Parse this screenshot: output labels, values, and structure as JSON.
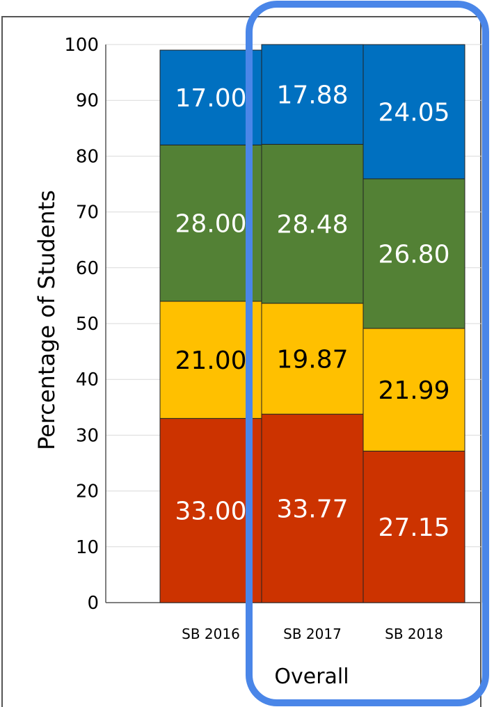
{
  "chart_data": {
    "type": "bar",
    "stacked": true,
    "categories": [
      "SB 2016",
      "SB 2017",
      "SB 2018"
    ],
    "series": [
      {
        "values": [
          33.0,
          33.77,
          27.15
        ],
        "labels": [
          "33.00",
          "33.77",
          "27.15"
        ],
        "color": "#CC3300",
        "label_color": "#ffffff"
      },
      {
        "values": [
          21.0,
          19.87,
          21.99
        ],
        "labels": [
          "21.00",
          "19.87",
          "21.99"
        ],
        "color": "#FFC000",
        "label_color": "#000000"
      },
      {
        "values": [
          28.0,
          28.48,
          26.8
        ],
        "labels": [
          "28.00",
          "28.48",
          "26.80"
        ],
        "color": "#538135",
        "label_color": "#ffffff"
      },
      {
        "values": [
          17.0,
          17.88,
          24.05
        ],
        "labels": [
          "17.00",
          "17.88",
          "24.05"
        ],
        "color": "#0070C0",
        "label_color": "#ffffff"
      }
    ],
    "title": "",
    "xlabel": "Overall",
    "ylabel": "Percentage of Students",
    "ylim": [
      0,
      100
    ],
    "yticks": [
      "0",
      "10",
      "20",
      "30",
      "40",
      "50",
      "60",
      "70",
      "80",
      "90",
      "100"
    ],
    "grid": true,
    "legend": "none"
  },
  "highlight": {
    "color": "#4A86E8",
    "covers": [
      "SB 2017",
      "SB 2018"
    ]
  }
}
